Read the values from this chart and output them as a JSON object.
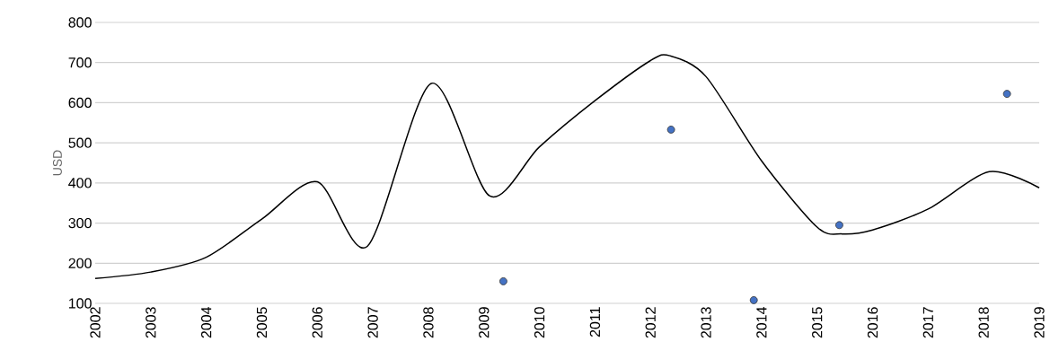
{
  "chart_data": {
    "type": "line",
    "ylabel": "USD",
    "xlim": [
      2002,
      2019
    ],
    "ylim": [
      100,
      800
    ],
    "xticks": [
      2002,
      2003,
      2004,
      2005,
      2006,
      2007,
      2008,
      2009,
      2010,
      2011,
      2012,
      2013,
      2014,
      2015,
      2016,
      2017,
      2018,
      2019
    ],
    "yticks": [
      100,
      200,
      300,
      400,
      500,
      600,
      700,
      800
    ],
    "grid": "y",
    "line_style": "solid",
    "series": [
      {
        "color": "#000000",
        "marker": "none",
        "x": [
          2002,
          2003,
          2004,
          2005,
          2006,
          2006.9,
          2008.05,
          2009.1,
          2010,
          2011,
          2012,
          2012.35,
          2013,
          2014,
          2015,
          2015.45,
          2016,
          2017,
          2018.1,
          2019
        ],
        "values": [
          162,
          178,
          215,
          310,
          403,
          242,
          648,
          368,
          490,
          605,
          705,
          717,
          665,
          455,
          290,
          273,
          283,
          335,
          428,
          388
        ]
      },
      {
        "type": "scatter",
        "color": "#4472c4",
        "marker": "circle",
        "x": [
          2009.35,
          2012.37,
          2013.86,
          2015.4,
          2018.42
        ],
        "values": [
          155,
          533,
          108,
          295,
          622
        ]
      }
    ]
  }
}
